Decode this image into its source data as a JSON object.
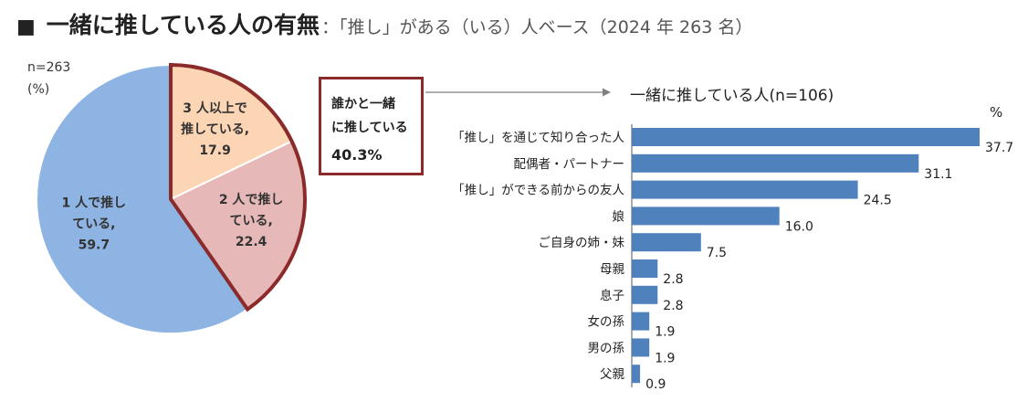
{
  "header": {
    "square": "■",
    "title": "一緒に推している人の有無",
    "subtitle": "：「推し」がある（いる）人ベース（2024 年 263 名）"
  },
  "pie": {
    "n_label": "n=263",
    "unit_label": "(%)",
    "colors": {
      "one": "#8eb4e3",
      "two": "#e6b9b8",
      "three": "#fcd5b5",
      "highlight": "#8b2a2a"
    }
  },
  "callout": {
    "line1": "誰かと一緒",
    "line2": "に推している",
    "value": "40.3%"
  },
  "bar": {
    "title": "一緒に推している人(n=106)",
    "unit": "%",
    "color": "#4f81bd"
  },
  "chart_data": [
    {
      "type": "pie",
      "slices": [
        {
          "label_lines": [
            "3 人以上で",
            "推している,",
            "17.9"
          ],
          "value": 17.9
        },
        {
          "label_lines": [
            "2 人で推し",
            "ている,",
            "22.4"
          ],
          "value": 22.4
        },
        {
          "label_lines": [
            "1 人で推し",
            "ている,",
            "59.7"
          ],
          "value": 59.7
        }
      ]
    },
    {
      "type": "bar",
      "orientation": "horizontal",
      "title": "一緒に推している人(n=106)",
      "categories": [
        "「推し」を通じて知り合った人",
        "配偶者・パートナー",
        "「推し」ができる前からの友人",
        "娘",
        "ご自身の姉・妹",
        "母親",
        "息子",
        "女の孫",
        "男の孫",
        "父親"
      ],
      "values": [
        37.7,
        31.1,
        24.5,
        16.0,
        7.5,
        2.8,
        2.8,
        1.9,
        1.9,
        0.9
      ],
      "value_labels": [
        "37.7",
        "31.1",
        "24.5",
        "16.0",
        "7.5",
        "2.8",
        "2.8",
        "1.9",
        "1.9",
        "0.9"
      ],
      "xlim": [
        0,
        37.7
      ]
    }
  ]
}
